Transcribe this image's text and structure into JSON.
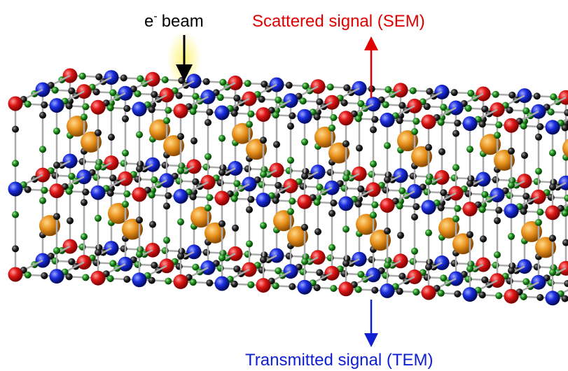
{
  "beam_label": {
    "base": "e",
    "sup": "-",
    "rest": "beam"
  },
  "scattered_label": "Scattered signal (SEM)",
  "transmitted_label": "Transmitted signal (TEM)"
}
